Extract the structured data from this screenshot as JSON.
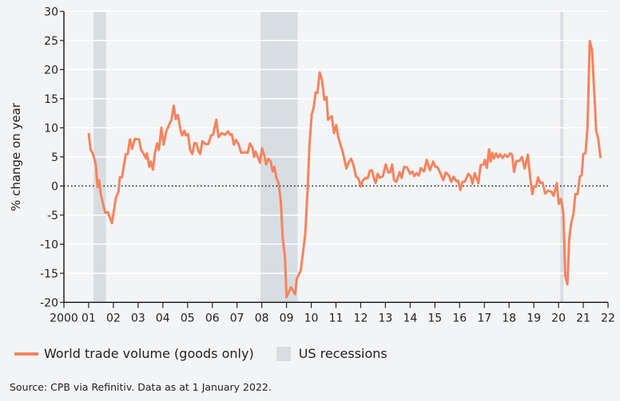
{
  "chart_data": {
    "type": "line",
    "title": "",
    "ylabel": "% change on year",
    "xlabel": "",
    "ylim": [
      -20,
      30
    ],
    "xlim": [
      2000,
      2022
    ],
    "yticks": [
      -20,
      -15,
      -10,
      -5,
      0,
      5,
      10,
      15,
      20,
      25,
      30
    ],
    "ytick_labels": [
      "-20",
      "-15",
      "-10",
      "-5",
      "0",
      "5",
      "10",
      "15",
      "20",
      "25",
      "30"
    ],
    "xticks": [
      2000,
      2001,
      2002,
      2003,
      2004,
      2005,
      2006,
      2007,
      2008,
      2009,
      2010,
      2011,
      2012,
      2013,
      2014,
      2015,
      2016,
      2017,
      2018,
      2019,
      2020,
      2021,
      2022
    ],
    "xtick_labels": [
      "2000",
      "01",
      "02",
      "03",
      "04",
      "05",
      "06",
      "07",
      "08",
      "09",
      "10",
      "11",
      "12",
      "13",
      "14",
      "15",
      "16",
      "17",
      "18",
      "19",
      "20",
      "21",
      "22"
    ],
    "grid": "horizontal",
    "zero_line": "dotted",
    "legend_placement": "bottom-left",
    "colors": {
      "line": "#f4845f",
      "recession": "#d8dde2",
      "grid": "#ffffff",
      "background": "#f3f4f6"
    },
    "shaded_regions": {
      "name": "US recessions",
      "ranges": [
        [
          2001.2,
          2001.7
        ],
        [
          2007.95,
          2009.45
        ],
        [
          2020.07,
          2020.2
        ]
      ]
    },
    "series": [
      {
        "name": "World trade volume (goods only)",
        "x": [
          2001.0,
          2001.08,
          2001.18,
          2001.29,
          2001.36,
          2001.42,
          2001.49,
          2001.67,
          2001.78,
          2001.94,
          2002.1,
          2002.21,
          2002.26,
          2002.35,
          2002.5,
          2002.58,
          2002.67,
          2002.76,
          2002.87,
          2003.04,
          2003.12,
          2003.23,
          2003.32,
          2003.36,
          2003.45,
          2003.51,
          2003.6,
          2003.68,
          2003.77,
          2003.84,
          2003.94,
          2004.03,
          2004.14,
          2004.27,
          2004.35,
          2004.44,
          2004.52,
          2004.61,
          2004.72,
          2004.78,
          2004.87,
          2004.93,
          2005.02,
          2005.1,
          2005.19,
          2005.28,
          2005.36,
          2005.45,
          2005.51,
          2005.6,
          2005.73,
          2005.84,
          2005.95,
          2006.03,
          2006.16,
          2006.25,
          2006.38,
          2006.51,
          2006.64,
          2006.72,
          2006.79,
          2006.87,
          2006.96,
          2007.07,
          2007.17,
          2007.32,
          2007.43,
          2007.52,
          2007.62,
          2007.69,
          2007.75,
          2007.93,
          2008.01,
          2008.1,
          2008.18,
          2008.27,
          2008.36,
          2008.44,
          2008.51,
          2008.59,
          2008.68,
          2008.77,
          2008.85,
          2008.94,
          2009.0,
          2009.18,
          2009.35,
          2009.41,
          2009.58,
          2009.76,
          2009.86,
          2009.93,
          2010.02,
          2010.1,
          2010.18,
          2010.25,
          2010.34,
          2010.43,
          2010.53,
          2010.62,
          2010.68,
          2010.83,
          2010.92,
          2011.01,
          2011.09,
          2011.27,
          2011.42,
          2011.5,
          2011.61,
          2011.7,
          2011.81,
          2011.91,
          2012.0,
          2012.08,
          2012.19,
          2012.28,
          2012.37,
          2012.45,
          2012.51,
          2012.6,
          2012.69,
          2012.77,
          2012.9,
          2013.01,
          2013.12,
          2013.2,
          2013.27,
          2013.35,
          2013.44,
          2013.57,
          2013.66,
          2013.76,
          2013.87,
          2014.0,
          2014.09,
          2014.17,
          2014.26,
          2014.35,
          2014.43,
          2014.56,
          2014.67,
          2014.8,
          2014.93,
          2015.02,
          2015.1,
          2015.21,
          2015.34,
          2015.44,
          2015.57,
          2015.66,
          2015.76,
          2015.87,
          2015.94,
          2016.03,
          2016.11,
          2016.22,
          2016.35,
          2016.44,
          2016.52,
          2016.61,
          2016.76,
          2016.85,
          2016.97,
          2017.02,
          2017.1,
          2017.19,
          2017.25,
          2017.32,
          2017.38,
          2017.47,
          2017.55,
          2017.64,
          2017.73,
          2017.83,
          2017.94,
          2018.05,
          2018.12,
          2018.2,
          2018.29,
          2018.42,
          2018.52,
          2018.63,
          2018.76,
          2018.85,
          2018.94,
          2019.0,
          2019.09,
          2019.17,
          2019.26,
          2019.35,
          2019.46,
          2019.58,
          2019.71,
          2019.8,
          2019.93,
          2020.01,
          2020.1,
          2020.19,
          2020.23,
          2020.27,
          2020.36,
          2020.43,
          2020.51,
          2020.6,
          2020.68,
          2020.77,
          2020.86,
          2020.94,
          2021.0,
          2021.09,
          2021.17,
          2021.26,
          2021.35,
          2021.48,
          2021.52,
          2021.61,
          2021.7
        ],
        "y": [
          9.1,
          6.2,
          5.5,
          3.7,
          -0.2,
          1.0,
          -1.4,
          -4.6,
          -4.5,
          -6.4,
          -2.1,
          -0.9,
          1.5,
          1.5,
          5.5,
          5.5,
          8.0,
          6.4,
          8.1,
          8.0,
          6.2,
          5.5,
          4.7,
          5.6,
          3.3,
          4.2,
          2.8,
          5.7,
          7.3,
          6.2,
          10.0,
          7.1,
          9.4,
          10.7,
          11.4,
          13.8,
          11.5,
          12.2,
          9.5,
          8.7,
          9.5,
          8.7,
          8.9,
          6.2,
          5.5,
          7.4,
          7.3,
          5.9,
          5.5,
          7.7,
          7.2,
          7.2,
          8.7,
          8.8,
          11.4,
          8.4,
          9.1,
          8.8,
          9.4,
          8.8,
          8.9,
          7.1,
          7.9,
          7.1,
          5.7,
          5.8,
          5.7,
          7.3,
          6.6,
          5.0,
          5.9,
          4.0,
          6.5,
          5.3,
          3.7,
          4.7,
          4.2,
          2.5,
          3.3,
          1.4,
          0.5,
          -2.7,
          -9.1,
          -12.3,
          -19.1,
          -17.4,
          -18.6,
          -16.0,
          -14.5,
          -8.2,
          0.0,
          7.3,
          12.3,
          13.5,
          16.1,
          16.0,
          19.5,
          18.3,
          14.8,
          15.3,
          11.4,
          12.0,
          9.1,
          10.5,
          8.4,
          5.9,
          3.0,
          3.9,
          4.7,
          3.7,
          1.6,
          1.3,
          -0.1,
          0.9,
          1.4,
          1.3,
          2.6,
          2.7,
          1.8,
          0.5,
          2.1,
          1.4,
          1.7,
          3.7,
          2.3,
          2.4,
          3.7,
          1.0,
          0.7,
          2.4,
          1.4,
          3.3,
          3.2,
          2.1,
          2.5,
          1.7,
          2.2,
          1.8,
          3.1,
          2.5,
          4.5,
          2.7,
          4.2,
          3.3,
          3.3,
          2.3,
          1.0,
          2.3,
          1.8,
          0.7,
          1.6,
          0.8,
          0.9,
          -0.7,
          0.7,
          0.8,
          2.1,
          1.7,
          0.4,
          2.2,
          0.5,
          3.6,
          3.7,
          4.5,
          3.1,
          6.3,
          4.2,
          5.7,
          4.7,
          5.6,
          4.9,
          5.5,
          4.8,
          5.4,
          5.0,
          5.6,
          5.4,
          2.4,
          4.3,
          4.3,
          5.0,
          3.0,
          5.4,
          1.5,
          -1.4,
          -0.1,
          -0.1,
          1.5,
          0.5,
          0.6,
          -1.3,
          -0.8,
          -1.0,
          -1.7,
          0.5,
          -3.1,
          -2.2,
          -4.6,
          -9.1,
          -15.5,
          -16.9,
          -9.1,
          -6.4,
          -4.8,
          -1.4,
          -1.4,
          1.6,
          1.9,
          5.5,
          5.6,
          10.0,
          24.9,
          23.5,
          13.2,
          9.6,
          8.0,
          4.8
        ]
      }
    ]
  },
  "legend": {
    "series_label": "World trade volume (goods only)",
    "recession_label": "US recessions"
  },
  "source": "Source: CPB via Refinitiv. Data as at 1 January 2022."
}
